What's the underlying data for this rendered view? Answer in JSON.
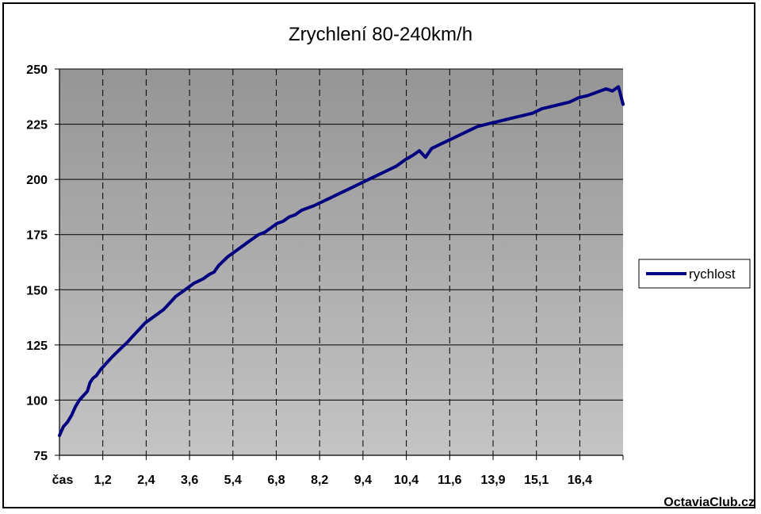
{
  "chart_data": {
    "type": "line",
    "title": "Zrychlení 80-240km/h",
    "xlabel": "",
    "ylabel": "",
    "x_tick_labels": [
      "čas",
      "1,2",
      "2,4",
      "3,6",
      "5,4",
      "6,8",
      "8,2",
      "9,4",
      "10,4",
      "11,6",
      "13,9",
      "15,1",
      "16,4"
    ],
    "y_ticks": [
      75,
      100,
      125,
      150,
      175,
      200,
      225,
      250
    ],
    "ylim": [
      75,
      250
    ],
    "grid": {
      "horizontal": true,
      "vertical_dashed": true
    },
    "legend_position": "right",
    "series": [
      {
        "name": "rychlost",
        "color": "#000080",
        "x": [
          0,
          0.13,
          0.26,
          0.39,
          0.52,
          0.65,
          0.78,
          0.91,
          1.0,
          1.1,
          1.2,
          1.35,
          1.55,
          1.75,
          1.9,
          2.05,
          2.2,
          2.4,
          2.6,
          2.8,
          3.0,
          3.2,
          3.4,
          3.6,
          3.8,
          4.0,
          4.2,
          4.4,
          4.55,
          4.7,
          4.9,
          5.05,
          5.2,
          5.35,
          5.5,
          5.7,
          5.9,
          6.1,
          6.3,
          6.5,
          6.7,
          6.9,
          7.1,
          7.3,
          7.5,
          7.7,
          7.9,
          8.1,
          8.3,
          8.6,
          8.9,
          9.2,
          9.5,
          9.8,
          10.1,
          10.4,
          10.7,
          11.0,
          11.3,
          11.55,
          11.75,
          11.95,
          12.15,
          12.45,
          12.75,
          13.05,
          13.35,
          13.65,
          13.95,
          14.25,
          14.55,
          14.85,
          15.15,
          15.45,
          15.75,
          16.05,
          16.35,
          16.65,
          16.95,
          17.25,
          17.45,
          17.65,
          17.85,
          18.05,
          18.25,
          18.4
        ],
        "values": [
          84,
          88,
          90,
          93,
          97,
          100,
          102,
          104,
          108,
          110,
          111,
          114,
          117,
          120,
          122,
          124,
          126,
          129,
          132,
          135,
          137,
          139,
          141,
          144,
          147,
          149,
          151,
          153,
          154,
          155,
          157,
          158,
          161,
          163,
          165,
          167,
          169,
          171,
          173,
          175,
          176,
          178,
          180,
          181,
          183,
          184,
          186,
          187,
          188,
          190,
          192,
          194,
          196,
          198,
          200,
          202,
          204,
          206,
          209,
          211,
          213,
          210,
          214,
          216,
          218,
          220,
          222,
          224,
          225,
          226,
          227,
          228,
          229,
          230,
          232,
          233,
          234,
          235,
          237,
          238,
          239,
          240,
          241,
          240,
          242,
          234
        ]
      }
    ]
  },
  "legend": {
    "label": "rychlost"
  },
  "watermark": "OctaviaClub.cz"
}
